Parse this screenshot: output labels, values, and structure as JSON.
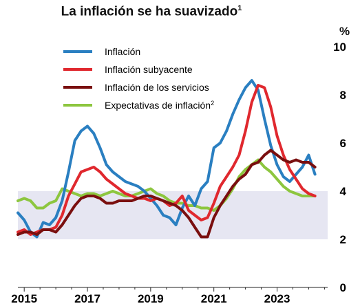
{
  "chart_data": {
    "type": "line",
    "title": "La inflación se ha suavizado",
    "title_note": "1",
    "y_unit": "%",
    "ylim": [
      0,
      10
    ],
    "yticks": [
      "0",
      "2",
      "4",
      "6",
      "8",
      "10"
    ],
    "xlim": [
      2014.8,
      2024.6
    ],
    "xticks": [
      "2015",
      "2017",
      "2019",
      "2021",
      "2023"
    ],
    "band": {
      "from": 2,
      "to": 4,
      "color": "#e6e6f2"
    },
    "legend_position": "top-left",
    "series": [
      {
        "name": "Inflación",
        "color": "#2a7fc1",
        "x": [
          2014.8,
          2015.0,
          2015.2,
          2015.4,
          2015.6,
          2015.8,
          2016.0,
          2016.2,
          2016.4,
          2016.6,
          2016.8,
          2017.0,
          2017.2,
          2017.4,
          2017.6,
          2017.8,
          2018.0,
          2018.2,
          2018.4,
          2018.6,
          2018.8,
          2019.0,
          2019.2,
          2019.4,
          2019.6,
          2019.8,
          2020.0,
          2020.2,
          2020.4,
          2020.6,
          2020.8,
          2021.0,
          2021.2,
          2021.4,
          2021.6,
          2021.8,
          2022.0,
          2022.2,
          2022.4,
          2022.6,
          2022.8,
          2023.0,
          2023.2,
          2023.4,
          2023.6,
          2023.8,
          2024.0,
          2024.2
        ],
        "values": [
          3.1,
          2.8,
          2.3,
          2.1,
          2.7,
          2.6,
          2.9,
          3.6,
          4.8,
          6.1,
          6.5,
          6.7,
          6.4,
          5.8,
          5.1,
          4.8,
          4.6,
          4.4,
          4.3,
          4.2,
          4.0,
          3.7,
          3.4,
          3.0,
          2.9,
          2.6,
          3.3,
          3.8,
          3.4,
          4.1,
          4.4,
          5.8,
          6.0,
          6.5,
          7.2,
          7.8,
          8.3,
          8.6,
          8.2,
          7.0,
          5.9,
          5.1,
          4.6,
          4.4,
          4.7,
          5.0,
          5.5,
          4.7
        ]
      },
      {
        "name": "Inflación subyacente",
        "color": "#e0282e",
        "x": [
          2014.8,
          2015.0,
          2015.2,
          2015.4,
          2015.6,
          2015.8,
          2016.0,
          2016.2,
          2016.4,
          2016.6,
          2016.8,
          2017.0,
          2017.2,
          2017.4,
          2017.6,
          2017.8,
          2018.0,
          2018.2,
          2018.4,
          2018.6,
          2018.8,
          2019.0,
          2019.2,
          2019.4,
          2019.6,
          2019.8,
          2020.0,
          2020.2,
          2020.4,
          2020.6,
          2020.8,
          2021.0,
          2021.2,
          2021.4,
          2021.6,
          2021.8,
          2022.0,
          2022.2,
          2022.4,
          2022.6,
          2022.8,
          2023.0,
          2023.2,
          2023.4,
          2023.6,
          2023.8,
          2024.0,
          2024.2
        ],
        "values": [
          2.3,
          2.4,
          2.2,
          2.3,
          2.4,
          2.4,
          2.5,
          3.0,
          3.8,
          4.3,
          4.8,
          4.9,
          5.0,
          4.8,
          4.5,
          4.3,
          4.1,
          3.9,
          3.8,
          3.7,
          3.7,
          3.6,
          3.7,
          3.6,
          3.4,
          3.5,
          3.8,
          3.2,
          3.0,
          2.8,
          2.9,
          3.5,
          4.2,
          4.6,
          5.0,
          5.5,
          6.5,
          7.7,
          8.4,
          8.3,
          7.5,
          6.3,
          5.5,
          4.9,
          4.5,
          4.1,
          3.9,
          3.8
        ]
      },
      {
        "name": "Inflación de los servicios",
        "color": "#7a0f0f",
        "x": [
          2014.8,
          2015.0,
          2015.2,
          2015.4,
          2015.6,
          2015.8,
          2016.0,
          2016.2,
          2016.4,
          2016.6,
          2016.8,
          2017.0,
          2017.2,
          2017.4,
          2017.6,
          2017.8,
          2018.0,
          2018.2,
          2018.4,
          2018.6,
          2018.8,
          2019.0,
          2019.2,
          2019.4,
          2019.6,
          2019.8,
          2020.0,
          2020.2,
          2020.4,
          2020.6,
          2020.8,
          2021.0,
          2021.2,
          2021.4,
          2021.6,
          2021.8,
          2022.0,
          2022.2,
          2022.4,
          2022.6,
          2022.8,
          2023.0,
          2023.2,
          2023.4,
          2023.6,
          2023.8,
          2024.0,
          2024.2
        ],
        "values": [
          2.2,
          2.3,
          2.3,
          2.2,
          2.4,
          2.4,
          2.3,
          2.6,
          3.0,
          3.4,
          3.7,
          3.8,
          3.8,
          3.7,
          3.5,
          3.5,
          3.6,
          3.6,
          3.6,
          3.7,
          3.8,
          3.8,
          3.7,
          3.6,
          3.5,
          3.4,
          3.2,
          2.9,
          2.5,
          2.1,
          2.1,
          2.9,
          3.4,
          3.8,
          4.2,
          4.5,
          4.7,
          5.1,
          5.2,
          5.5,
          5.7,
          5.5,
          5.3,
          5.2,
          5.3,
          5.2,
          5.2,
          5.0
        ]
      },
      {
        "name": "Expectativas de inflación",
        "note": "2",
        "color": "#8dc63f",
        "x": [
          2014.8,
          2015.0,
          2015.2,
          2015.4,
          2015.6,
          2015.8,
          2016.0,
          2016.2,
          2016.4,
          2016.6,
          2016.8,
          2017.0,
          2017.2,
          2017.4,
          2017.6,
          2017.8,
          2018.0,
          2018.2,
          2018.4,
          2018.6,
          2018.8,
          2019.0,
          2019.2,
          2019.4,
          2019.6,
          2019.8,
          2020.0,
          2020.2,
          2020.4,
          2020.6,
          2020.8,
          2021.0,
          2021.2,
          2021.4,
          2021.6,
          2021.8,
          2022.0,
          2022.2,
          2022.4,
          2022.6,
          2022.8,
          2023.0,
          2023.2,
          2023.4,
          2023.6,
          2023.8,
          2024.0,
          2024.2
        ],
        "values": [
          3.6,
          3.7,
          3.6,
          3.3,
          3.3,
          3.5,
          3.6,
          4.1,
          4.0,
          3.9,
          3.8,
          3.9,
          3.9,
          3.8,
          3.9,
          4.0,
          3.9,
          3.8,
          3.8,
          3.9,
          4.0,
          4.1,
          3.9,
          3.8,
          3.6,
          3.5,
          3.5,
          3.4,
          3.4,
          3.3,
          3.3,
          3.2,
          3.4,
          3.7,
          4.1,
          4.6,
          4.9,
          5.1,
          5.3,
          5.0,
          4.8,
          4.5,
          4.2,
          4.0,
          3.9,
          3.8,
          3.8,
          3.8
        ]
      }
    ]
  }
}
